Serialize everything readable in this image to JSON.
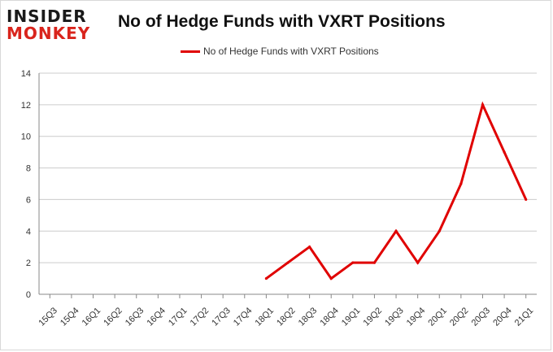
{
  "brand": {
    "line1": "INSIDER",
    "line2": "MONKEY"
  },
  "colors": {
    "series": "#e00000",
    "grid": "#cccccc",
    "axis": "#888888",
    "brand_red": "#d9241c"
  },
  "chart_data": {
    "type": "line",
    "title": "No of Hedge Funds with VXRT Positions",
    "xlabel": "",
    "ylabel": "",
    "ylim": [
      0,
      14
    ],
    "yticks": [
      0,
      2,
      4,
      6,
      8,
      10,
      12,
      14
    ],
    "grid": true,
    "legend_position": "top-center",
    "categories": [
      "15Q3",
      "15Q4",
      "16Q1",
      "16Q2",
      "16Q3",
      "16Q4",
      "17Q1",
      "17Q2",
      "17Q3",
      "17Q4",
      "18Q1",
      "18Q2",
      "18Q3",
      "18Q4",
      "19Q1",
      "19Q2",
      "19Q3",
      "19Q4",
      "20Q1",
      "20Q2",
      "20Q3",
      "20Q4",
      "21Q1"
    ],
    "series": [
      {
        "name": "No of Hedge Funds with VXRT Positions",
        "values": [
          null,
          null,
          null,
          null,
          null,
          null,
          null,
          null,
          null,
          null,
          1,
          2,
          3,
          1,
          2,
          2,
          4,
          2,
          4,
          7,
          12,
          9,
          6
        ]
      }
    ]
  }
}
